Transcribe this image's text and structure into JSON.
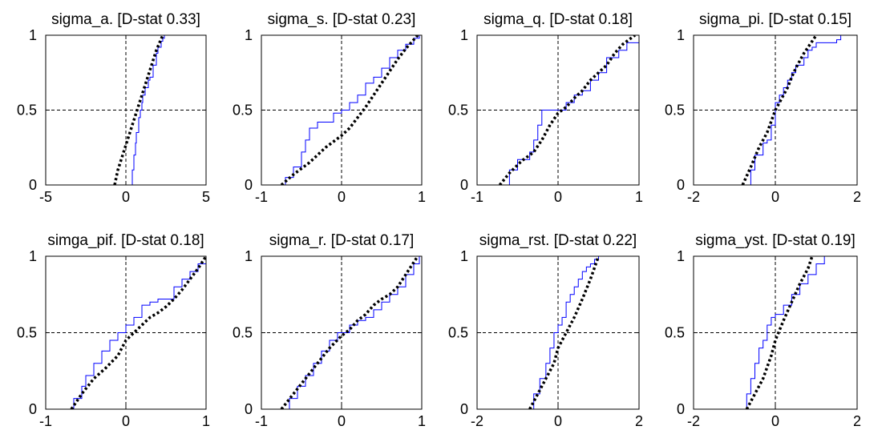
{
  "colors": {
    "empirical": "#0000ff",
    "theoretical": "#000000",
    "ref_line": "#000000",
    "axes": "#000000"
  },
  "chart_data": [
    {
      "type": "line",
      "title": "sigma_a. [D-stat 0.33]",
      "xlim": [
        -5,
        5
      ],
      "ylim": [
        0,
        1
      ],
      "xticks": [
        "-5",
        "0",
        "5"
      ],
      "yticks": [
        "0",
        "0.5",
        "1"
      ],
      "series": [
        {
          "style": "solid",
          "x": [
            0.35,
            0.4,
            0.5,
            0.6,
            0.65,
            0.8,
            0.9,
            1.0,
            1.05,
            1.2,
            1.4,
            1.5,
            1.7,
            1.9,
            2.0,
            2.2,
            2.3,
            2.4
          ],
          "y": [
            0.0,
            0.1,
            0.2,
            0.28,
            0.35,
            0.45,
            0.5,
            0.55,
            0.6,
            0.65,
            0.7,
            0.72,
            0.8,
            0.88,
            0.92,
            0.96,
            0.98,
            1.0
          ]
        },
        {
          "style": "dotted",
          "x": [
            -0.7,
            -0.5,
            -0.2,
            0.1,
            0.4,
            0.7,
            1.0,
            1.3,
            1.6,
            1.9,
            2.1,
            2.3
          ],
          "y": [
            0.0,
            0.1,
            0.2,
            0.3,
            0.4,
            0.5,
            0.6,
            0.7,
            0.8,
            0.9,
            0.95,
            1.0
          ]
        }
      ]
    },
    {
      "type": "line",
      "title": "sigma_s. [D-stat 0.23]",
      "xlim": [
        -1,
        1
      ],
      "ylim": [
        0,
        1
      ],
      "xticks": [
        "-1",
        "0",
        "1"
      ],
      "yticks": [
        "0",
        "0.5",
        "1"
      ],
      "series": [
        {
          "style": "solid",
          "x": [
            -0.78,
            -0.7,
            -0.6,
            -0.5,
            -0.45,
            -0.4,
            -0.3,
            -0.2,
            -0.1,
            0.0,
            0.1,
            0.2,
            0.3,
            0.4,
            0.5,
            0.6,
            0.7,
            0.8,
            0.9,
            0.97
          ],
          "y": [
            0.0,
            0.05,
            0.12,
            0.22,
            0.3,
            0.38,
            0.42,
            0.42,
            0.48,
            0.5,
            0.55,
            0.6,
            0.68,
            0.72,
            0.78,
            0.85,
            0.9,
            0.94,
            0.98,
            1.0
          ]
        },
        {
          "style": "dotted",
          "x": [
            -0.75,
            -0.6,
            -0.4,
            -0.2,
            0.0,
            0.1,
            0.2,
            0.3,
            0.4,
            0.5,
            0.6,
            0.7,
            0.8,
            0.95
          ],
          "y": [
            0.0,
            0.07,
            0.15,
            0.25,
            0.33,
            0.38,
            0.45,
            0.52,
            0.6,
            0.68,
            0.76,
            0.84,
            0.91,
            1.0
          ]
        }
      ]
    },
    {
      "type": "line",
      "title": "sigma_q. [D-stat 0.18]",
      "xlim": [
        -1,
        1
      ],
      "ylim": [
        0,
        1
      ],
      "xticks": [
        "-1",
        "0",
        "1"
      ],
      "yticks": [
        "0",
        "0.5",
        "1"
      ],
      "series": [
        {
          "style": "solid",
          "x": [
            -0.72,
            -0.6,
            -0.5,
            -0.35,
            -0.3,
            -0.25,
            -0.2,
            -0.1,
            0.0,
            0.1,
            0.2,
            0.3,
            0.4,
            0.5,
            0.6,
            0.75,
            0.85,
            1.0
          ],
          "y": [
            0.0,
            0.1,
            0.17,
            0.22,
            0.3,
            0.4,
            0.5,
            0.5,
            0.5,
            0.55,
            0.6,
            0.63,
            0.7,
            0.75,
            0.85,
            0.9,
            0.95,
            1.0
          ]
        },
        {
          "style": "dotted",
          "x": [
            -0.72,
            -0.6,
            -0.45,
            -0.3,
            -0.2,
            -0.1,
            0.0,
            0.1,
            0.2,
            0.3,
            0.4,
            0.5,
            0.6,
            0.7,
            0.8,
            0.95
          ],
          "y": [
            0.0,
            0.08,
            0.16,
            0.22,
            0.3,
            0.4,
            0.48,
            0.52,
            0.58,
            0.63,
            0.7,
            0.75,
            0.8,
            0.88,
            0.94,
            1.0
          ]
        }
      ]
    },
    {
      "type": "line",
      "title": "sigma_pi. [D-stat 0.15]",
      "xlim": [
        -2,
        2
      ],
      "ylim": [
        0,
        1
      ],
      "xticks": [
        "-2",
        "0",
        "2"
      ],
      "yticks": [
        "0",
        "0.5",
        "1"
      ],
      "series": [
        {
          "style": "solid",
          "x": [
            -0.7,
            -0.6,
            -0.5,
            -0.3,
            -0.2,
            -0.1,
            0.0,
            0.1,
            0.2,
            0.3,
            0.4,
            0.5,
            0.7,
            0.8,
            0.9,
            1.0,
            1.5,
            1.6
          ],
          "y": [
            0.0,
            0.1,
            0.2,
            0.28,
            0.3,
            0.4,
            0.55,
            0.6,
            0.65,
            0.7,
            0.75,
            0.8,
            0.85,
            0.9,
            0.92,
            0.95,
            0.97,
            1.0
          ]
        },
        {
          "style": "dotted",
          "x": [
            -0.8,
            -0.6,
            -0.4,
            -0.2,
            0.0,
            0.1,
            0.2,
            0.3,
            0.4,
            0.5,
            0.6,
            0.7,
            0.8,
            0.9,
            1.0
          ],
          "y": [
            0.0,
            0.12,
            0.25,
            0.35,
            0.5,
            0.55,
            0.6,
            0.65,
            0.72,
            0.78,
            0.83,
            0.88,
            0.92,
            0.96,
            1.0
          ]
        }
      ]
    },
    {
      "type": "line",
      "title": "simga_pif. [D-stat 0.18]",
      "xlim": [
        -1,
        1
      ],
      "ylim": [
        0,
        1
      ],
      "xticks": [
        "-1",
        "0",
        "1"
      ],
      "yticks": [
        "0",
        "0.5",
        "1"
      ],
      "series": [
        {
          "style": "solid",
          "x": [
            -0.75,
            -0.65,
            -0.55,
            -0.5,
            -0.4,
            -0.3,
            -0.2,
            -0.1,
            0.0,
            0.1,
            0.2,
            0.3,
            0.4,
            0.5,
            0.6,
            0.7,
            0.8,
            0.9,
            1.0
          ],
          "y": [
            0.0,
            0.07,
            0.15,
            0.22,
            0.3,
            0.38,
            0.45,
            0.5,
            0.55,
            0.6,
            0.68,
            0.7,
            0.72,
            0.72,
            0.8,
            0.85,
            0.9,
            0.95,
            1.0
          ]
        },
        {
          "style": "dotted",
          "x": [
            -0.68,
            -0.55,
            -0.4,
            -0.25,
            -0.1,
            0.0,
            0.1,
            0.2,
            0.3,
            0.4,
            0.5,
            0.6,
            0.7,
            0.8,
            0.9,
            1.0
          ],
          "y": [
            0.0,
            0.1,
            0.2,
            0.27,
            0.35,
            0.45,
            0.5,
            0.55,
            0.6,
            0.63,
            0.67,
            0.72,
            0.78,
            0.85,
            0.92,
            1.0
          ]
        }
      ]
    },
    {
      "type": "line",
      "title": "sigma_r. [D-stat 0.17]",
      "xlim": [
        -1,
        1
      ],
      "ylim": [
        0,
        1
      ],
      "xticks": [
        "-1",
        "0",
        "1"
      ],
      "yticks": [
        "0",
        "0.5",
        "1"
      ],
      "series": [
        {
          "style": "solid",
          "x": [
            -0.75,
            -0.65,
            -0.55,
            -0.45,
            -0.35,
            -0.25,
            -0.15,
            -0.05,
            0.0,
            0.1,
            0.2,
            0.3,
            0.4,
            0.5,
            0.6,
            0.7,
            0.8,
            0.9,
            0.97
          ],
          "y": [
            0.0,
            0.07,
            0.15,
            0.22,
            0.3,
            0.38,
            0.45,
            0.5,
            0.5,
            0.55,
            0.58,
            0.6,
            0.65,
            0.7,
            0.75,
            0.8,
            0.88,
            0.95,
            1.0
          ]
        },
        {
          "style": "dotted",
          "x": [
            -0.75,
            -0.6,
            -0.45,
            -0.3,
            -0.15,
            0.0,
            0.1,
            0.2,
            0.3,
            0.4,
            0.5,
            0.6,
            0.7,
            0.8,
            0.95
          ],
          "y": [
            0.0,
            0.1,
            0.2,
            0.3,
            0.4,
            0.48,
            0.52,
            0.58,
            0.62,
            0.68,
            0.72,
            0.75,
            0.8,
            0.88,
            1.0
          ]
        }
      ]
    },
    {
      "type": "line",
      "title": "sigma_rst. [D-stat 0.22]",
      "xlim": [
        -2,
        2
      ],
      "ylim": [
        0,
        1
      ],
      "xticks": [
        "-2",
        "0",
        "2"
      ],
      "yticks": [
        "0",
        "0.5",
        "1"
      ],
      "series": [
        {
          "style": "solid",
          "x": [
            -0.75,
            -0.6,
            -0.45,
            -0.3,
            -0.2,
            -0.1,
            0.0,
            0.1,
            0.2,
            0.3,
            0.4,
            0.5,
            0.6,
            0.7,
            0.8,
            0.9,
            1.0,
            1.2
          ],
          "y": [
            0.0,
            0.1,
            0.2,
            0.3,
            0.4,
            0.5,
            0.55,
            0.6,
            0.7,
            0.75,
            0.8,
            0.85,
            0.9,
            0.93,
            0.95,
            0.98,
            1.0,
            1.0
          ]
        },
        {
          "style": "dotted",
          "x": [
            -0.7,
            -0.5,
            -0.3,
            -0.1,
            0.0,
            0.2,
            0.4,
            0.6,
            0.8,
            1.0
          ],
          "y": [
            0.0,
            0.1,
            0.2,
            0.3,
            0.4,
            0.5,
            0.6,
            0.72,
            0.85,
            1.0
          ]
        }
      ]
    },
    {
      "type": "line",
      "title": "sigma_yst. [D-stat 0.19]",
      "xlim": [
        -2,
        2
      ],
      "ylim": [
        0,
        1
      ],
      "xticks": [
        "-2",
        "0",
        "2"
      ],
      "yticks": [
        "0",
        "0.5",
        "1"
      ],
      "series": [
        {
          "style": "solid",
          "x": [
            -0.85,
            -0.7,
            -0.6,
            -0.5,
            -0.4,
            -0.3,
            -0.2,
            -0.1,
            0.0,
            0.2,
            0.4,
            0.6,
            0.8,
            1.0,
            1.2,
            1.5
          ],
          "y": [
            0.0,
            0.1,
            0.2,
            0.3,
            0.4,
            0.45,
            0.55,
            0.6,
            0.62,
            0.68,
            0.75,
            0.82,
            0.88,
            0.95,
            1.0,
            1.0
          ]
        },
        {
          "style": "dotted",
          "x": [
            -0.7,
            -0.5,
            -0.3,
            -0.1,
            0.0,
            0.2,
            0.4,
            0.6,
            0.8,
            0.9
          ],
          "y": [
            0.0,
            0.1,
            0.2,
            0.35,
            0.45,
            0.58,
            0.7,
            0.82,
            0.92,
            1.0
          ]
        }
      ]
    }
  ]
}
